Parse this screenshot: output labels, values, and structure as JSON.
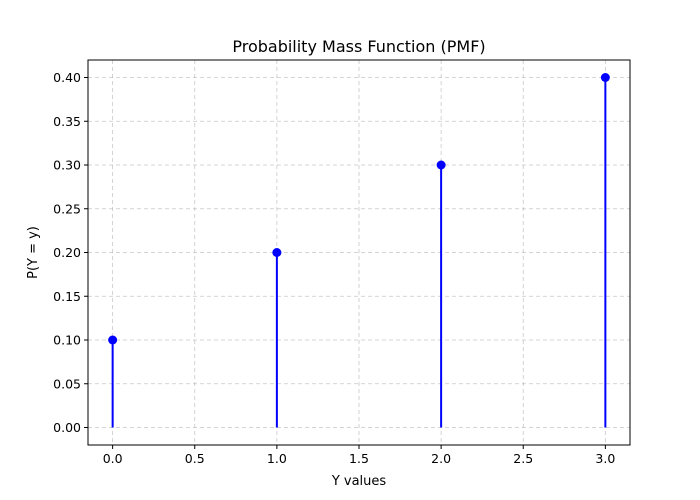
{
  "chart_data": {
    "type": "stem",
    "title": "Probability Mass Function (PMF)",
    "xlabel": "Y values",
    "ylabel": "P(Y = y)",
    "x": [
      0,
      1,
      2,
      3
    ],
    "values": [
      0.1,
      0.2,
      0.3,
      0.4
    ],
    "xlim": [
      -0.15,
      3.15
    ],
    "ylim": [
      -0.02,
      0.42
    ],
    "xticks": [
      0.0,
      0.5,
      1.0,
      1.5,
      2.0,
      2.5,
      3.0
    ],
    "xtick_labels": [
      "0.0",
      "0.5",
      "1.0",
      "1.5",
      "2.0",
      "2.5",
      "3.0"
    ],
    "yticks": [
      0.0,
      0.05,
      0.1,
      0.15,
      0.2,
      0.25,
      0.3,
      0.35,
      0.4
    ],
    "ytick_labels": [
      "0.00",
      "0.05",
      "0.10",
      "0.15",
      "0.20",
      "0.25",
      "0.30",
      "0.35",
      "0.40"
    ],
    "grid": true,
    "color": "#0000ff"
  }
}
